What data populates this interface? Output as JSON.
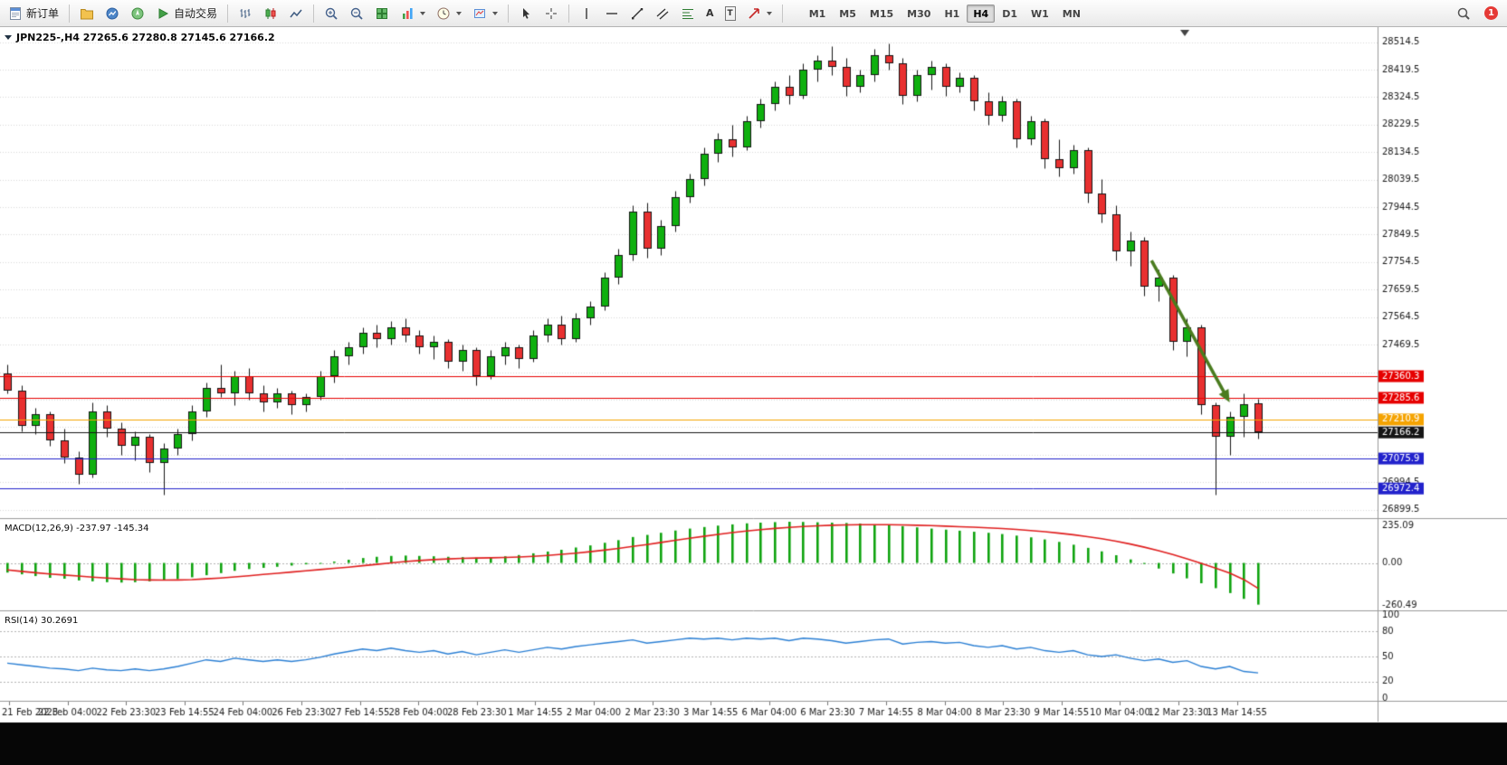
{
  "window": {
    "notification_badge": "1"
  },
  "toolbar": {
    "new_order": "新订单",
    "auto_trading": "自动交易",
    "timeframes": [
      "M1",
      "M5",
      "M15",
      "M30",
      "H1",
      "H4",
      "D1",
      "W1",
      "MN"
    ],
    "active_timeframe": "H4"
  },
  "icons": {
    "text_tool": "A",
    "label_tool": "T"
  },
  "chart_data": [
    {
      "type": "candlestick",
      "symbol": "JPN225-",
      "period": "H4",
      "legend": "JPN225-,H4 27265.6 27280.8 27145.6 27166.2",
      "ohlc_current": {
        "open": 27265.6,
        "high": 27280.8,
        "low": 27145.6,
        "close": 27166.2
      },
      "ylim": [
        26870,
        28560
      ],
      "y_ticks": [
        28514.5,
        28419.5,
        28324.5,
        28229.5,
        28134.5,
        28039.5,
        27944.5,
        27849.5,
        27754.5,
        27659.5,
        27564.5,
        27469.5,
        27374.5,
        27279.5,
        27184.5,
        27089.5,
        26994.5,
        26899.5
      ],
      "x_labels": [
        "21 Feb 2023",
        "22 Feb 04:00",
        "22 Feb 23:30",
        "23 Feb 14:55",
        "24 Feb 04:00",
        "26 Feb 23:30",
        "27 Feb 14:55",
        "28 Feb 04:00",
        "28 Feb 23:30",
        "1 Mar 14:55",
        "2 Mar 04:00",
        "2 Mar 23:30",
        "3 Mar 14:55",
        "6 Mar 04:00",
        "6 Mar 23:30",
        "7 Mar 14:55",
        "8 Mar 04:00",
        "8 Mar 23:30",
        "9 Mar 14:55",
        "10 Mar 04:00",
        "12 Mar 23:30",
        "13 Mar 14:55"
      ],
      "colors": {
        "up": "#0fb00f",
        "down": "#e83030",
        "outline": "#151515",
        "grid": "#d9d9d9"
      },
      "hlines": [
        {
          "price": 27360.3,
          "label": "27360.3",
          "color": "#e60000"
        },
        {
          "price": 27285.6,
          "label": "27285.6",
          "color": "#e60000"
        },
        {
          "price": 27210.9,
          "label": "27210.9",
          "color": "#f5a300"
        },
        {
          "price": 27166.2,
          "label": "27166.2",
          "color": "#151515"
        },
        {
          "price": 27075.9,
          "label": "27075.9",
          "color": "#2222cc"
        },
        {
          "price": 26972.4,
          "label": "26972.4",
          "color": "#2222cc"
        }
      ],
      "arrow": {
        "i1": 80.5,
        "p1": 27760,
        "i2": 86,
        "p2": 27270,
        "color": "#4a7c1f"
      },
      "shift_marker_frac": 0.86,
      "candles": [
        [
          27370,
          27400,
          27300,
          27310
        ],
        [
          27310,
          27330,
          27170,
          27190
        ],
        [
          27190,
          27250,
          27160,
          27230
        ],
        [
          27230,
          27240,
          27120,
          27140
        ],
        [
          27140,
          27180,
          27060,
          27080
        ],
        [
          27080,
          27100,
          26990,
          27020
        ],
        [
          27020,
          27270,
          27010,
          27240
        ],
        [
          27240,
          27260,
          27150,
          27180
        ],
        [
          27180,
          27200,
          27090,
          27120
        ],
        [
          27120,
          27170,
          27070,
          27150
        ],
        [
          27150,
          27160,
          27030,
          27060
        ],
        [
          27060,
          27130,
          26950,
          27110
        ],
        [
          27110,
          27180,
          27090,
          27160
        ],
        [
          27160,
          27260,
          27140,
          27240
        ],
        [
          27240,
          27340,
          27220,
          27320
        ],
        [
          27320,
          27400,
          27290,
          27300
        ],
        [
          27300,
          27380,
          27260,
          27360
        ],
        [
          27360,
          27390,
          27280,
          27300
        ],
        [
          27300,
          27330,
          27240,
          27270
        ],
        [
          27270,
          27320,
          27250,
          27300
        ],
        [
          27300,
          27310,
          27230,
          27260
        ],
        [
          27260,
          27300,
          27240,
          27290
        ],
        [
          27290,
          27380,
          27280,
          27360
        ],
        [
          27360,
          27450,
          27340,
          27430
        ],
        [
          27430,
          27480,
          27400,
          27460
        ],
        [
          27460,
          27530,
          27440,
          27510
        ],
        [
          27510,
          27540,
          27460,
          27490
        ],
        [
          27490,
          27550,
          27470,
          27530
        ],
        [
          27530,
          27560,
          27480,
          27500
        ],
        [
          27500,
          27520,
          27440,
          27460
        ],
        [
          27460,
          27500,
          27420,
          27480
        ],
        [
          27480,
          27490,
          27390,
          27410
        ],
        [
          27410,
          27470,
          27380,
          27450
        ],
        [
          27450,
          27460,
          27330,
          27360
        ],
        [
          27360,
          27450,
          27350,
          27430
        ],
        [
          27430,
          27480,
          27400,
          27460
        ],
        [
          27460,
          27470,
          27390,
          27420
        ],
        [
          27420,
          27520,
          27410,
          27500
        ],
        [
          27500,
          27560,
          27480,
          27540
        ],
        [
          27540,
          27570,
          27470,
          27490
        ],
        [
          27490,
          27580,
          27480,
          27560
        ],
        [
          27560,
          27620,
          27540,
          27600
        ],
        [
          27600,
          27720,
          27590,
          27700
        ],
        [
          27700,
          27800,
          27680,
          27780
        ],
        [
          27780,
          27950,
          27760,
          27930
        ],
        [
          27930,
          27960,
          27770,
          27800
        ],
        [
          27800,
          27900,
          27780,
          27880
        ],
        [
          27880,
          28000,
          27860,
          27980
        ],
        [
          27980,
          28060,
          27960,
          28040
        ],
        [
          28040,
          28150,
          28020,
          28130
        ],
        [
          28130,
          28200,
          28100,
          28180
        ],
        [
          28180,
          28230,
          28120,
          28150
        ],
        [
          28150,
          28260,
          28140,
          28240
        ],
        [
          28240,
          28320,
          28220,
          28300
        ],
        [
          28300,
          28380,
          28280,
          28360
        ],
        [
          28360,
          28400,
          28300,
          28330
        ],
        [
          28330,
          28440,
          28320,
          28420
        ],
        [
          28420,
          28470,
          28380,
          28450
        ],
        [
          28450,
          28500,
          28400,
          28430
        ],
        [
          28430,
          28460,
          28330,
          28360
        ],
        [
          28360,
          28420,
          28340,
          28400
        ],
        [
          28400,
          28490,
          28380,
          28470
        ],
        [
          28470,
          28510,
          28420,
          28440
        ],
        [
          28440,
          28460,
          28300,
          28330
        ],
        [
          28330,
          28420,
          28310,
          28400
        ],
        [
          28400,
          28450,
          28350,
          28430
        ],
        [
          28430,
          28440,
          28330,
          28360
        ],
        [
          28360,
          28410,
          28340,
          28390
        ],
        [
          28390,
          28400,
          28280,
          28310
        ],
        [
          28310,
          28340,
          28230,
          28260
        ],
        [
          28260,
          28330,
          28240,
          28310
        ],
        [
          28310,
          28320,
          28150,
          28180
        ],
        [
          28180,
          28260,
          28160,
          28240
        ],
        [
          28240,
          28250,
          28080,
          28110
        ],
        [
          28110,
          28180,
          28050,
          28080
        ],
        [
          28080,
          28160,
          28060,
          28140
        ],
        [
          28140,
          28150,
          27960,
          27990
        ],
        [
          27990,
          28040,
          27890,
          27920
        ],
        [
          27920,
          27950,
          27760,
          27790
        ],
        [
          27790,
          27860,
          27740,
          27830
        ],
        [
          27830,
          27840,
          27640,
          27670
        ],
        [
          27670,
          27730,
          27620,
          27700
        ],
        [
          27700,
          27710,
          27450,
          27480
        ],
        [
          27480,
          27560,
          27430,
          27530
        ],
        [
          27530,
          27540,
          27230,
          27260
        ],
        [
          27260,
          27270,
          26950,
          27150
        ],
        [
          27150,
          27240,
          27090,
          27220
        ],
        [
          27220,
          27300,
          27150,
          27265
        ],
        [
          27265.6,
          27280.8,
          27145.6,
          27166.2
        ]
      ]
    },
    {
      "type": "macd",
      "legend": "MACD(12,26,9) -237.97 -145.34",
      "params": "12,26,9",
      "value_macd": -237.97,
      "value_signal": -145.34,
      "ylim": [
        -260.49,
        235.09
      ],
      "y_ticks": [
        235.09,
        0,
        -260.49
      ],
      "colors": {
        "histogram": "#0fa30f",
        "signal": "#e01f1f"
      },
      "histogram": [
        -55,
        -65,
        -75,
        -85,
        -90,
        -100,
        -105,
        -110,
        -112,
        -110,
        -105,
        -100,
        -92,
        -82,
        -70,
        -58,
        -45,
        -35,
        -28,
        -22,
        -15,
        -8,
        0,
        8,
        18,
        28,
        35,
        40,
        42,
        40,
        38,
        35,
        33,
        30,
        32,
        38,
        45,
        55,
        65,
        75,
        88,
        100,
        115,
        130,
        148,
        160,
        172,
        185,
        196,
        205,
        213,
        220,
        226,
        230,
        233,
        235,
        234,
        232,
        230,
        228,
        225,
        220,
        216,
        210,
        203,
        196,
        190,
        184,
        178,
        172,
        165,
        156,
        146,
        134,
        120,
        104,
        86,
        66,
        44,
        20,
        -6,
        -32,
        -60,
        -88,
        -116,
        -144,
        -172,
        -205,
        -237.97
      ],
      "signal": [
        -40,
        -48,
        -56,
        -63,
        -69,
        -75,
        -81,
        -86,
        -91,
        -95,
        -97,
        -98,
        -97,
        -95,
        -91,
        -86,
        -80,
        -73,
        -66,
        -59,
        -52,
        -45,
        -38,
        -31,
        -24,
        -16,
        -8,
        0,
        8,
        14,
        19,
        23,
        26,
        28,
        29,
        31,
        34,
        38,
        43,
        49,
        56,
        64,
        73,
        83,
        94,
        105,
        117,
        129,
        141,
        152,
        163,
        173,
        182,
        190,
        197,
        203,
        208,
        212,
        215,
        217,
        218,
        218,
        218,
        217,
        215,
        213,
        210,
        207,
        204,
        200,
        196,
        191,
        185,
        178,
        170,
        161,
        150,
        138,
        124,
        108,
        90,
        70,
        48,
        24,
        -2,
        -30,
        -58,
        -95,
        -145.34
      ]
    },
    {
      "type": "rsi",
      "legend": "RSI(14) 30.2691",
      "period": 14,
      "value": 30.2691,
      "ylim": [
        0,
        100
      ],
      "levels": [
        80,
        50,
        20
      ],
      "y_ticks": [
        100,
        80,
        50,
        20,
        0
      ],
      "color": "#2a7fd4",
      "values": [
        42,
        40,
        38,
        36,
        35,
        33,
        36,
        34,
        33,
        35,
        33,
        35,
        38,
        42,
        46,
        44,
        48,
        46,
        44,
        46,
        44,
        46,
        49,
        53,
        56,
        59,
        57,
        60,
        57,
        55,
        57,
        53,
        56,
        52,
        55,
        58,
        55,
        58,
        61,
        59,
        62,
        64,
        66,
        68,
        70,
        66,
        68,
        70,
        72,
        71,
        72,
        70,
        72,
        71,
        72,
        69,
        72,
        71,
        69,
        66,
        68,
        70,
        71,
        65,
        67,
        68,
        66,
        67,
        63,
        61,
        63,
        59,
        61,
        57,
        55,
        57,
        52,
        50,
        52,
        48,
        45,
        47,
        43,
        45,
        38,
        35,
        38,
        32,
        30.2691
      ]
    }
  ]
}
